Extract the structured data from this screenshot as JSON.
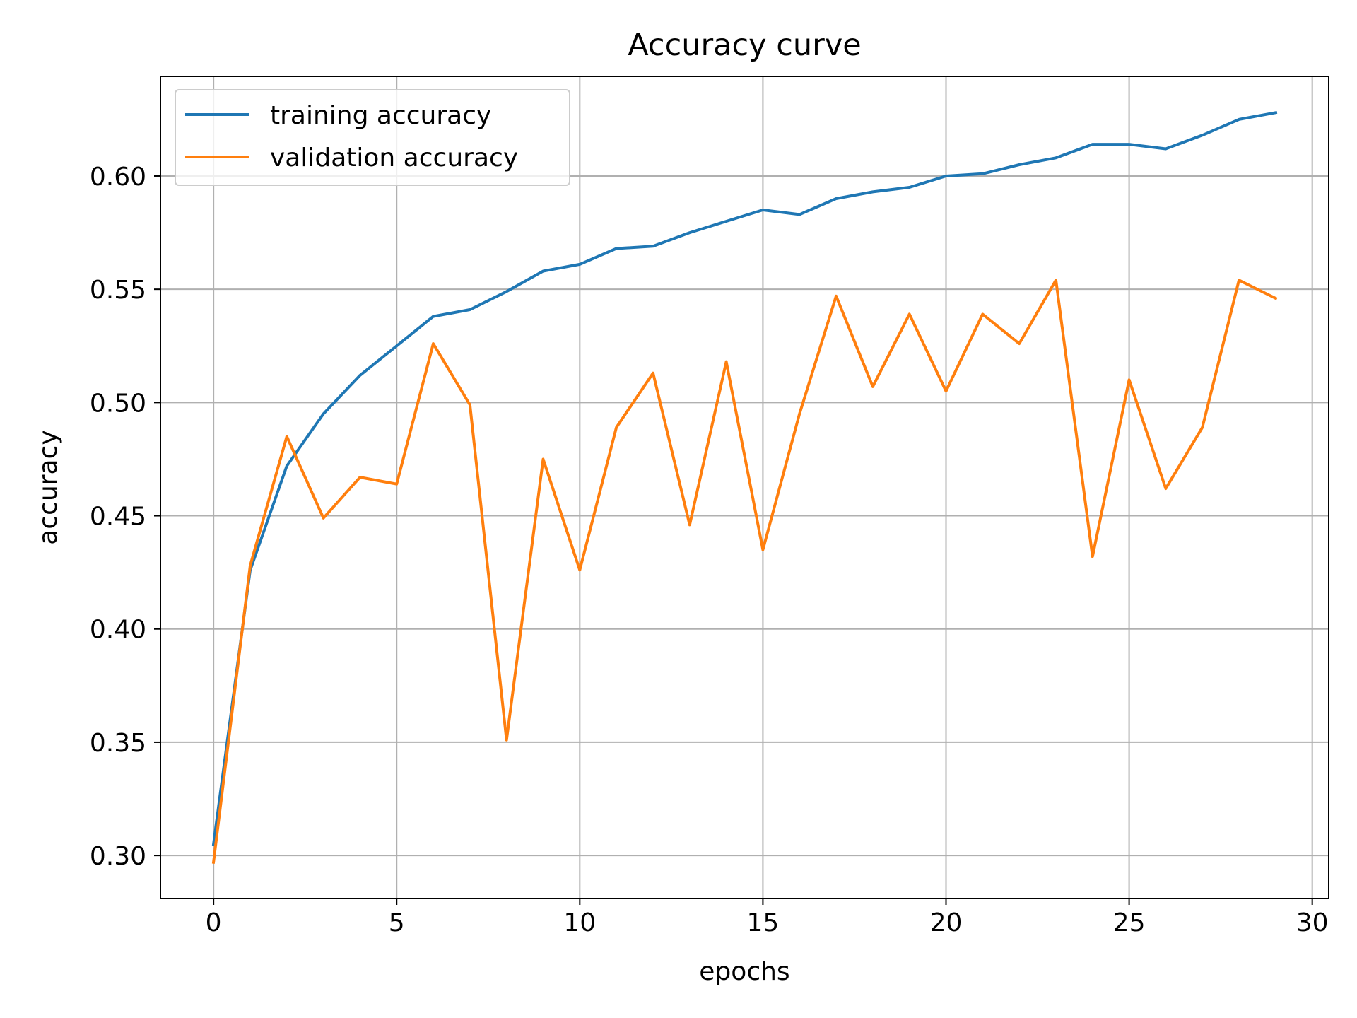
{
  "chart_data": {
    "type": "line",
    "title": "Accuracy curve",
    "xlabel": "epochs",
    "ylabel": "accuracy",
    "xlim": [
      -1.45,
      30.45
    ],
    "ylim": [
      0.281,
      0.644
    ],
    "xticks": [
      0,
      5,
      10,
      15,
      20,
      25,
      30
    ],
    "xtick_labels": [
      "0",
      "5",
      "10",
      "15",
      "20",
      "25",
      "30"
    ],
    "yticks": [
      0.3,
      0.35,
      0.4,
      0.45,
      0.5,
      0.55,
      0.6
    ],
    "ytick_labels": [
      "0.30",
      "0.35",
      "0.40",
      "0.45",
      "0.50",
      "0.55",
      "0.60"
    ],
    "grid": true,
    "legend_position": "upper-left",
    "x": [
      0,
      1,
      2,
      3,
      4,
      5,
      6,
      7,
      8,
      9,
      10,
      11,
      12,
      13,
      14,
      15,
      16,
      17,
      18,
      19,
      20,
      21,
      22,
      23,
      24,
      25,
      26,
      27,
      28,
      29
    ],
    "series": [
      {
        "name": "training accuracy",
        "color": "#1f77b4",
        "values": [
          0.305,
          0.426,
          0.472,
          0.495,
          0.512,
          0.525,
          0.538,
          0.541,
          0.549,
          0.558,
          0.561,
          0.568,
          0.569,
          0.575,
          0.58,
          0.585,
          0.583,
          0.59,
          0.593,
          0.595,
          0.6,
          0.601,
          0.605,
          0.608,
          0.614,
          0.614,
          0.612,
          0.618,
          0.625,
          0.628
        ]
      },
      {
        "name": "validation accuracy",
        "color": "#ff7f0e",
        "values": [
          0.297,
          0.428,
          0.485,
          0.449,
          0.467,
          0.464,
          0.526,
          0.499,
          0.351,
          0.475,
          0.426,
          0.489,
          0.513,
          0.446,
          0.518,
          0.435,
          0.495,
          0.547,
          0.507,
          0.539,
          0.505,
          0.539,
          0.526,
          0.554,
          0.432,
          0.51,
          0.462,
          0.489,
          0.554,
          0.546
        ]
      }
    ]
  }
}
